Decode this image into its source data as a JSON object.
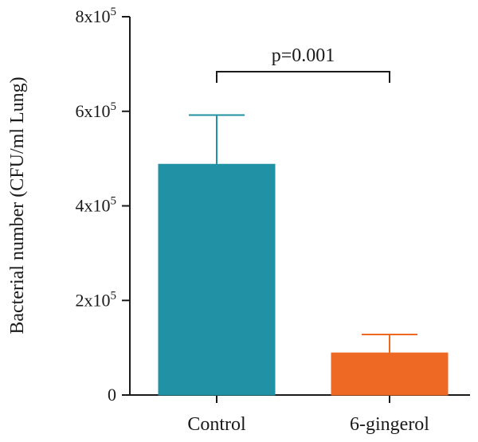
{
  "chart_data": {
    "type": "bar",
    "categories": [
      "Control",
      "6-gingerol"
    ],
    "values": [
      488000,
      89000
    ],
    "error_upper": [
      592000,
      128000
    ],
    "colors": [
      "#2192a5",
      "#ee6a24"
    ],
    "title": "",
    "xlabel": "",
    "ylabel": "Bacterial number (CFU/ml Lung)",
    "ylim": [
      0,
      800000
    ],
    "yticks": [
      {
        "value": 0,
        "base": "0",
        "exp": ""
      },
      {
        "value": 200000,
        "base": "2x10",
        "exp": "5"
      },
      {
        "value": 400000,
        "base": "4x10",
        "exp": "5"
      },
      {
        "value": 600000,
        "base": "6x10",
        "exp": "5"
      },
      {
        "value": 800000,
        "base": "8x10",
        "exp": "5"
      }
    ],
    "annotation": {
      "text": "p=0.001",
      "from": "Control",
      "to": "6-gingerol"
    },
    "grid": false,
    "legend": "none"
  }
}
